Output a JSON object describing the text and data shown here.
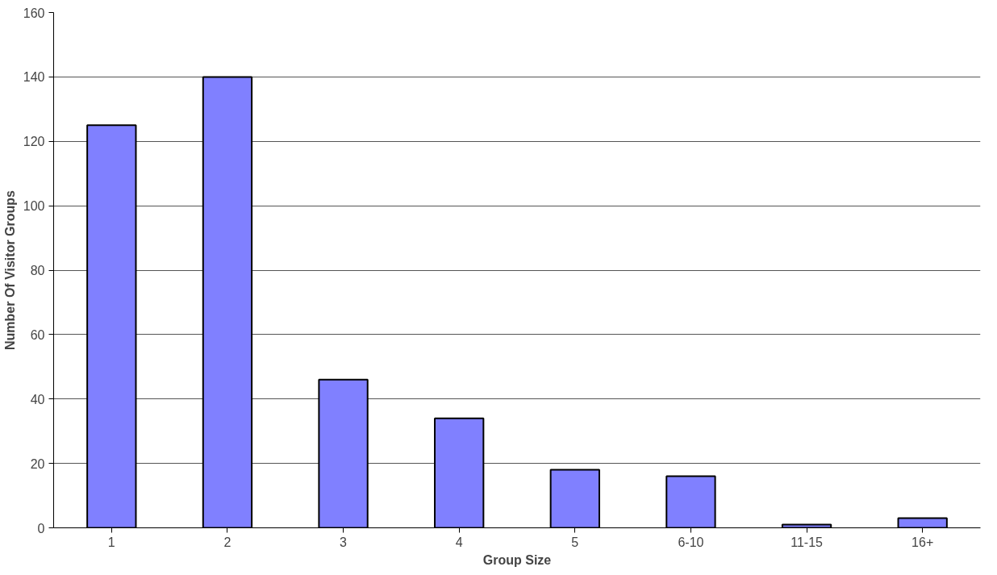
{
  "chart_data": {
    "type": "bar",
    "xlabel": "Group Size",
    "ylabel": "Number Of Visitor Groups",
    "categories": [
      "1",
      "2",
      "3",
      "4",
      "5",
      "6-10",
      "11-15",
      "16+"
    ],
    "values": [
      125,
      140,
      46,
      34,
      18,
      16,
      1,
      3
    ],
    "color": "#8080ff",
    "ylim": [
      0,
      160
    ],
    "yticks": [
      0,
      20,
      40,
      60,
      80,
      100,
      120,
      140,
      160
    ],
    "grid": "y"
  }
}
